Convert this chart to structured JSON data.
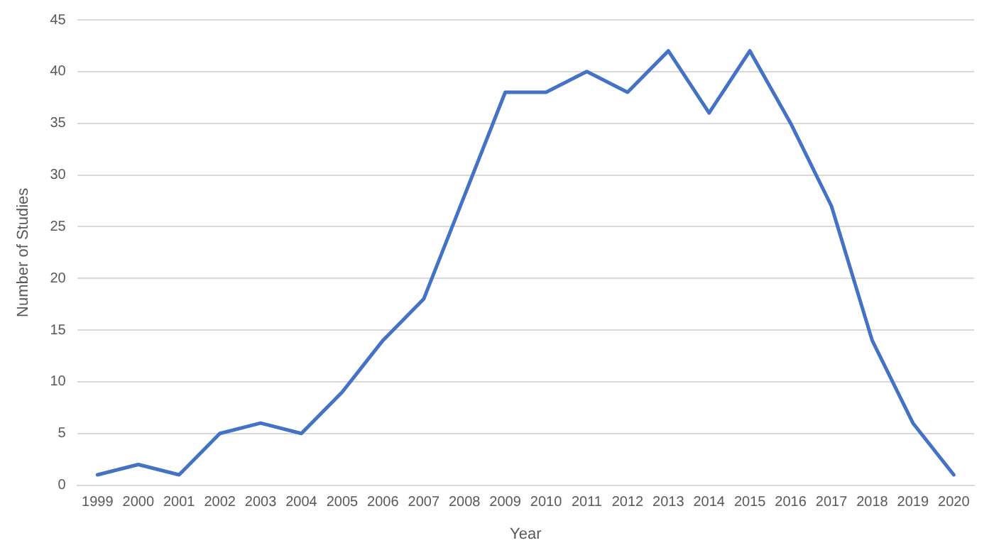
{
  "chart_data": {
    "type": "line",
    "xlabel": "Year",
    "ylabel": "Number of Studies",
    "categories": [
      "1999",
      "2000",
      "2001",
      "2002",
      "2003",
      "2004",
      "2005",
      "2006",
      "2007",
      "2008",
      "2009",
      "2010",
      "2011",
      "2012",
      "2013",
      "2014",
      "2015",
      "2016",
      "2017",
      "2018",
      "2019",
      "2020"
    ],
    "series": [
      {
        "color": "#4472c4",
        "values": [
          1,
          2,
          1,
          5,
          6,
          5,
          9,
          14,
          18,
          28,
          38,
          38,
          40,
          38,
          42,
          36,
          42,
          35,
          27,
          14,
          6,
          1
        ]
      }
    ],
    "ylim": [
      0,
      45
    ],
    "yticks": [
      0,
      5,
      10,
      15,
      20,
      25,
      30,
      35,
      40,
      45
    ],
    "grid": "y",
    "legend": false,
    "marker": "none",
    "line_style": "solid"
  }
}
